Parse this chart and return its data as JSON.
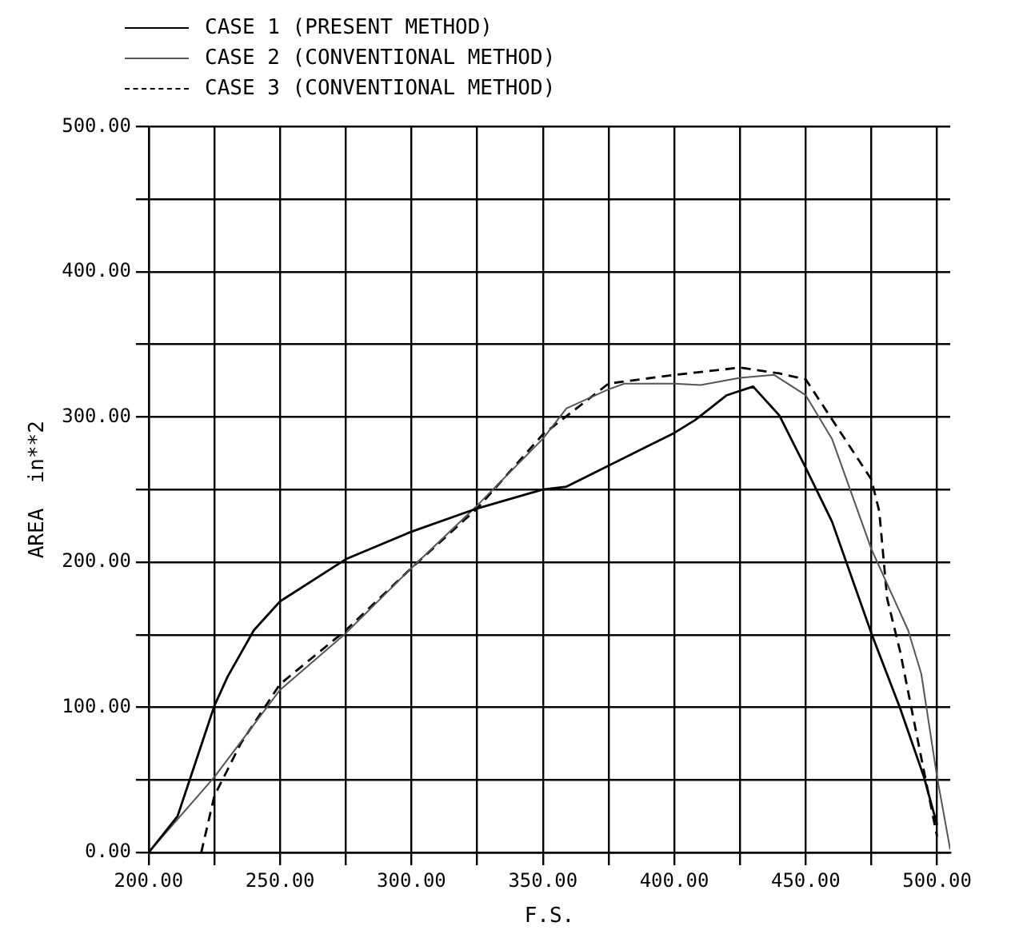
{
  "chart_data": {
    "type": "line",
    "xlabel": "F.S.",
    "ylabel": "AREA  in**2",
    "legend": "top left",
    "grid": true,
    "marker": "none",
    "xlim": [
      200,
      505
    ],
    "ylim": [
      0,
      500
    ],
    "xticks": [
      {
        "value": 200,
        "label": "200.00"
      },
      {
        "value": 225,
        "label": null
      },
      {
        "value": 250,
        "label": "250.00"
      },
      {
        "value": 275,
        "label": null
      },
      {
        "value": 300,
        "label": "300.00"
      },
      {
        "value": 325,
        "label": null
      },
      {
        "value": 350,
        "label": "350.00"
      },
      {
        "value": 375,
        "label": null
      },
      {
        "value": 400,
        "label": "400.00"
      },
      {
        "value": 425,
        "label": null
      },
      {
        "value": 450,
        "label": "450.00"
      },
      {
        "value": 475,
        "label": null
      },
      {
        "value": 500,
        "label": "500.00"
      }
    ],
    "yticks": [
      {
        "value": 0,
        "label": "0.00"
      },
      {
        "value": 50,
        "label": null
      },
      {
        "value": 100,
        "label": "100.00"
      },
      {
        "value": 150,
        "label": null
      },
      {
        "value": 200,
        "label": "200.00"
      },
      {
        "value": 250,
        "label": null
      },
      {
        "value": 300,
        "label": "300.00"
      },
      {
        "value": 350,
        "label": null
      },
      {
        "value": 400,
        "label": "400.00"
      },
      {
        "value": 450,
        "label": null
      },
      {
        "value": 500,
        "label": "500.00"
      }
    ],
    "series": [
      {
        "name": "CASE 1 (PRESENT METHOD)",
        "color": "#000000",
        "line_style": "solid",
        "x": [
          200,
          211,
          225,
          230,
          240,
          250,
          275,
          300,
          325,
          350,
          359,
          370,
          390,
          400,
          408,
          420,
          430,
          440,
          450,
          460,
          475,
          486,
          495,
          500
        ],
        "values": [
          0,
          25,
          101,
          121,
          153,
          173,
          202,
          221,
          237,
          250,
          252,
          262,
          280,
          289,
          298,
          315,
          321,
          301,
          265,
          228,
          151,
          99,
          52,
          19
        ]
      },
      {
        "name": "CASE 2 (CONVENTIONAL METHOD)",
        "color": "#555555",
        "line_style": "solid",
        "x": [
          200,
          225,
          250,
          275,
          300,
          325,
          350,
          359,
          375,
          381,
          400,
          410,
          425,
          438,
          450,
          460,
          475,
          489,
          494,
          500,
          505
        ],
        "values": [
          0,
          52,
          112,
          151,
          196,
          239,
          285,
          306,
          319,
          323,
          323,
          322,
          327,
          329,
          315,
          285,
          209,
          153,
          123,
          52,
          2
        ]
      },
      {
        "name": "CASE 3 (CONVENTIONAL METHOD)",
        "color": "#000000",
        "line_style": "dashed",
        "x": [
          220,
          225,
          235,
          250,
          275,
          300,
          325,
          350,
          375,
          400,
          425,
          440,
          450,
          475,
          478,
          481,
          486,
          495,
          500
        ],
        "values": [
          0,
          39,
          75,
          116,
          153,
          196,
          237,
          288,
          323,
          329,
          334,
          330,
          326,
          257,
          235,
          175,
          138,
          56,
          11
        ]
      }
    ]
  }
}
